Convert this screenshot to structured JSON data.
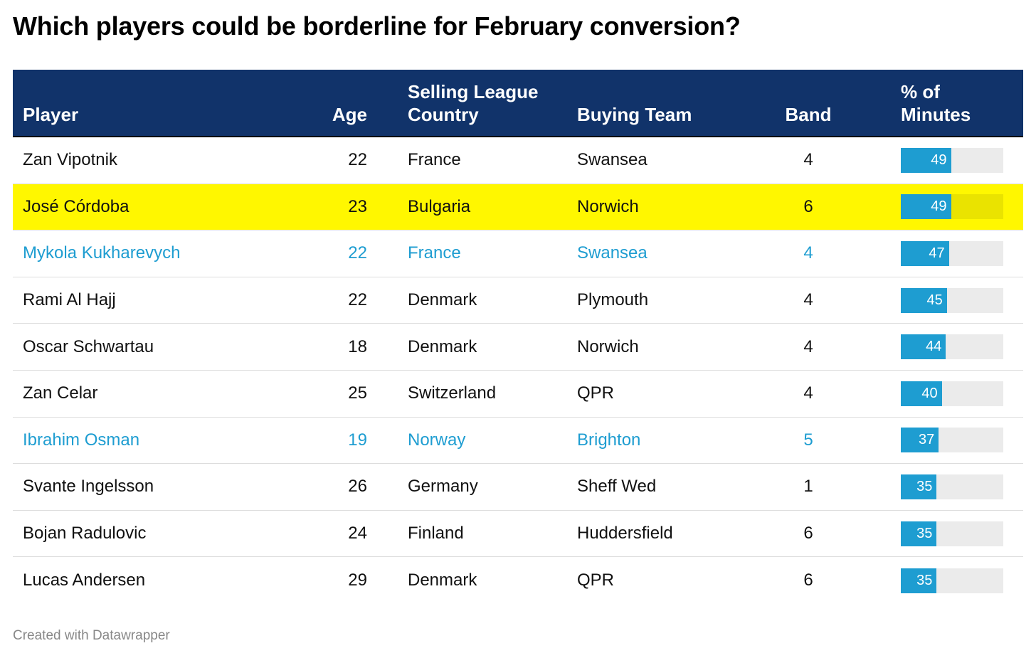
{
  "title": "Which players could be borderline for February conversion?",
  "colors": {
    "header_bg": "#11336a",
    "highlight_bg": "#fff700",
    "highlight_track": "#eae300",
    "link_text": "#1e9dd1",
    "bar": "#1e9dd1",
    "track": "#ebebeb"
  },
  "columns": {
    "player": "Player",
    "age": "Age",
    "country_line1": "Selling League",
    "country_line2": "Country",
    "team": "Buying Team",
    "band": "Band",
    "minutes_line1": "% of",
    "minutes_line2": "Minutes"
  },
  "footer": "Created with Datawrapper",
  "chart_data": {
    "type": "table",
    "title": "Which players could be borderline for February conversion?",
    "columns": [
      "Player",
      "Age",
      "Selling League Country",
      "Buying Team",
      "Band",
      "% of Minutes"
    ],
    "bar_max": 100,
    "rows": [
      {
        "player": "Zan Vipotnik",
        "age": "22",
        "country": "France",
        "team": "Swansea",
        "band": "4",
        "minutes": 49,
        "style": "normal"
      },
      {
        "player": "José Córdoba",
        "age": "23",
        "country": "Bulgaria",
        "team": "Norwich",
        "band": "6",
        "minutes": 49,
        "style": "highlight"
      },
      {
        "player": "Mykola Kukharevych",
        "age": "22",
        "country": "France",
        "team": "Swansea",
        "band": "4",
        "minutes": 47,
        "style": "link"
      },
      {
        "player": "Rami Al Hajj",
        "age": "22",
        "country": "Denmark",
        "team": "Plymouth",
        "band": "4",
        "minutes": 45,
        "style": "normal"
      },
      {
        "player": "Oscar Schwartau",
        "age": "18",
        "country": "Denmark",
        "team": "Norwich",
        "band": "4",
        "minutes": 44,
        "style": "normal"
      },
      {
        "player": "Zan Celar",
        "age": "25",
        "country": "Switzerland",
        "team": "QPR",
        "band": "4",
        "minutes": 40,
        "style": "normal"
      },
      {
        "player": "Ibrahim Osman",
        "age": "19",
        "country": "Norway",
        "team": "Brighton",
        "band": "5",
        "minutes": 37,
        "style": "link"
      },
      {
        "player": "Svante Ingelsson",
        "age": "26",
        "country": "Germany",
        "team": "Sheff Wed",
        "band": "1",
        "minutes": 35,
        "style": "normal"
      },
      {
        "player": "Bojan Radulovic",
        "age": "24",
        "country": "Finland",
        "team": "Huddersfield",
        "band": "6",
        "minutes": 35,
        "style": "normal"
      },
      {
        "player": "Lucas Andersen",
        "age": "29",
        "country": "Denmark",
        "team": "QPR",
        "band": "6",
        "minutes": 35,
        "style": "normal"
      }
    ]
  }
}
